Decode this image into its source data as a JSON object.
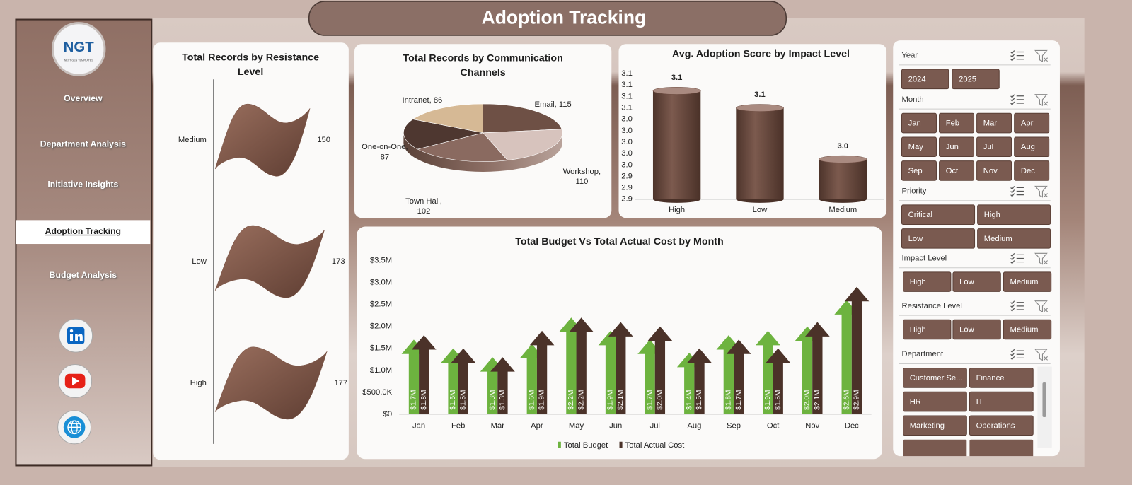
{
  "header": {
    "title": "Adoption Tracking"
  },
  "logo": {
    "text": "NGT",
    "tagline": "NEXT GEN TEMPLATES"
  },
  "nav": {
    "items": [
      "Overview",
      "Department Analysis",
      "Initiative Insights",
      "Adoption Tracking",
      "Budget Analysis"
    ],
    "active": 3
  },
  "chart_data": [
    {
      "type": "bar",
      "shape": "flag",
      "orientation": "horizontal",
      "title": "Total Records by Resistance Level",
      "categories": [
        "Medium",
        "Low",
        "High"
      ],
      "values": [
        150,
        173,
        177
      ],
      "color": "#7b5446"
    },
    {
      "type": "pie",
      "title": "Total Records by Communication Channels",
      "values": [
        115,
        110,
        102,
        87,
        86
      ],
      "value_labels": [
        "Email, 115",
        "Workshop, 110",
        "Town Hall, 102",
        "One-on-One, 87",
        "Intranet, 86"
      ],
      "colors": [
        "#6e5045",
        "#d7c3bd",
        "#8a6a60",
        "#4e3730",
        "#d6b995"
      ]
    },
    {
      "type": "bar",
      "shape": "cylinder",
      "title": "Avg. Adoption Score by Impact Level",
      "categories": [
        "High",
        "Low",
        "Medium"
      ],
      "values": [
        3.09,
        3.06,
        2.97
      ],
      "value_labels": [
        "3.1",
        "3.1",
        "3.0"
      ],
      "color": "#6e4d42",
      "ylim": [
        2.9,
        3.12
      ],
      "yticks": [
        2.9,
        {
          "value": 2.92,
          "label": "2.9"
        },
        {
          "value": 2.94,
          "label": "2.9"
        },
        {
          "value": 2.96,
          "label": "3.0"
        },
        {
          "value": 2.98,
          "label": "3.0"
        },
        {
          "value": 3.0,
          "label": "3.0"
        },
        {
          "value": 3.02,
          "label": "3.0"
        },
        {
          "value": 3.04,
          "label": "3.0"
        },
        {
          "value": 3.06,
          "label": "3.1"
        },
        {
          "value": 3.08,
          "label": "3.1"
        },
        3.1,
        {
          "value": 3.12,
          "label": "3.1"
        }
      ]
    },
    {
      "type": "bar",
      "shape": "arrow",
      "title": "Total Budget Vs Total Actual Cost by Month",
      "categories": [
        "Jan",
        "Feb",
        "Mar",
        "Apr",
        "May",
        "Jun",
        "Jul",
        "Aug",
        "Sep",
        "Oct",
        "Nov",
        "Dec"
      ],
      "series": [
        {
          "name": "Total Budget",
          "color": "#6db33f",
          "values": [
            1700000,
            1500000,
            1300000,
            1600000,
            2200000,
            1900000,
            1700000,
            1400000,
            1800000,
            1900000,
            2000000,
            2600000
          ],
          "value_labels": [
            "$1.7M",
            "$1.5M",
            "$1.3M",
            "$1.6M",
            "$2.2M",
            "$1.9M",
            "$1.7M",
            "$1.4M",
            "$1.8M",
            "$1.9M",
            "$2.0M",
            "$2.6M"
          ]
        },
        {
          "name": "Total Actual Cost",
          "color": "#4b3229",
          "values": [
            1800000,
            1500000,
            1300000,
            1900000,
            2200000,
            2100000,
            2000000,
            1500000,
            1700000,
            1500000,
            2100000,
            2900000
          ],
          "value_labels": [
            "$1.8M",
            "$1.5M",
            "$1.3M",
            "$1.9M",
            "$2.2M",
            "$2.1M",
            "$2.0M",
            "$1.5M",
            "$1.7M",
            "$1.5M",
            "$2.1M",
            "$2.9M"
          ]
        }
      ],
      "ylim": [
        0,
        3500000
      ],
      "yticks": [
        {
          "value": 0,
          "label": "$0"
        },
        {
          "value": 500000,
          "label": "$500.0K"
        },
        {
          "value": 1000000,
          "label": "$1.0M"
        },
        {
          "value": 1500000,
          "label": "$1.5M"
        },
        {
          "value": 2000000,
          "label": "$2.0M"
        },
        {
          "value": 2500000,
          "label": "$2.5M"
        },
        {
          "value": 3000000,
          "label": "$3.0M"
        },
        {
          "value": 3500000,
          "label": "$3.5M"
        }
      ],
      "legend": "bottom"
    }
  ],
  "slicers": [
    {
      "title": "Year",
      "items": [
        "2024",
        "2025"
      ]
    },
    {
      "title": "Month",
      "items": [
        "Jan",
        "Feb",
        "Mar",
        "Apr",
        "May",
        "Jun",
        "Jul",
        "Aug",
        "Sep",
        "Oct",
        "Nov",
        "Dec"
      ]
    },
    {
      "title": "Priority",
      "items": [
        "Critical",
        "High",
        "Low",
        "Medium"
      ]
    },
    {
      "title": "Impact Level",
      "items": [
        "High",
        "Low",
        "Medium"
      ]
    },
    {
      "title": "Resistance Level",
      "items": [
        "High",
        "Low",
        "Medium"
      ]
    },
    {
      "title": "Department",
      "items": [
        "Customer Se...",
        "Finance",
        "HR",
        "IT",
        "Marketing",
        "Operations"
      ]
    }
  ]
}
